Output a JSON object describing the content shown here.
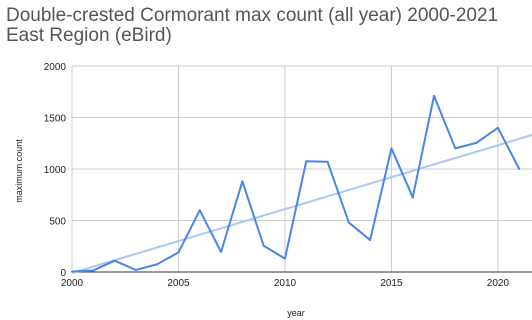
{
  "chart_data": {
    "type": "line",
    "title": "Double-crested Cormorant max count (all year) 2000-2021",
    "subtitle": "East Region (eBird)",
    "xlabel": "year",
    "ylabel": "maximum count",
    "xlim": [
      2000,
      2021.6
    ],
    "ylim": [
      0,
      2000
    ],
    "x_ticks": [
      "2000",
      "2005",
      "2010",
      "2015",
      "2020"
    ],
    "y_ticks": [
      "0",
      "500",
      "1000",
      "1500",
      "2000"
    ],
    "grid": true,
    "series": [
      {
        "color": "#4a86e8",
        "x": [
          2000,
          2001,
          2002,
          2003,
          2004,
          2005,
          2006,
          2007,
          2008,
          2009,
          2010,
          2011,
          2012,
          2013,
          2014,
          2015,
          2016,
          2017,
          2018,
          2019,
          2020,
          2021
        ],
        "values": [
          5,
          15,
          110,
          20,
          75,
          190,
          600,
          195,
          880,
          255,
          130,
          1075,
          1070,
          480,
          310,
          1200,
          725,
          1710,
          1200,
          1255,
          1400,
          1000
        ]
      }
    ],
    "trendline": {
      "color": "#a9c7f0",
      "x": [
        2000,
        2021.6
      ],
      "values": [
        -10,
        1330
      ]
    }
  }
}
